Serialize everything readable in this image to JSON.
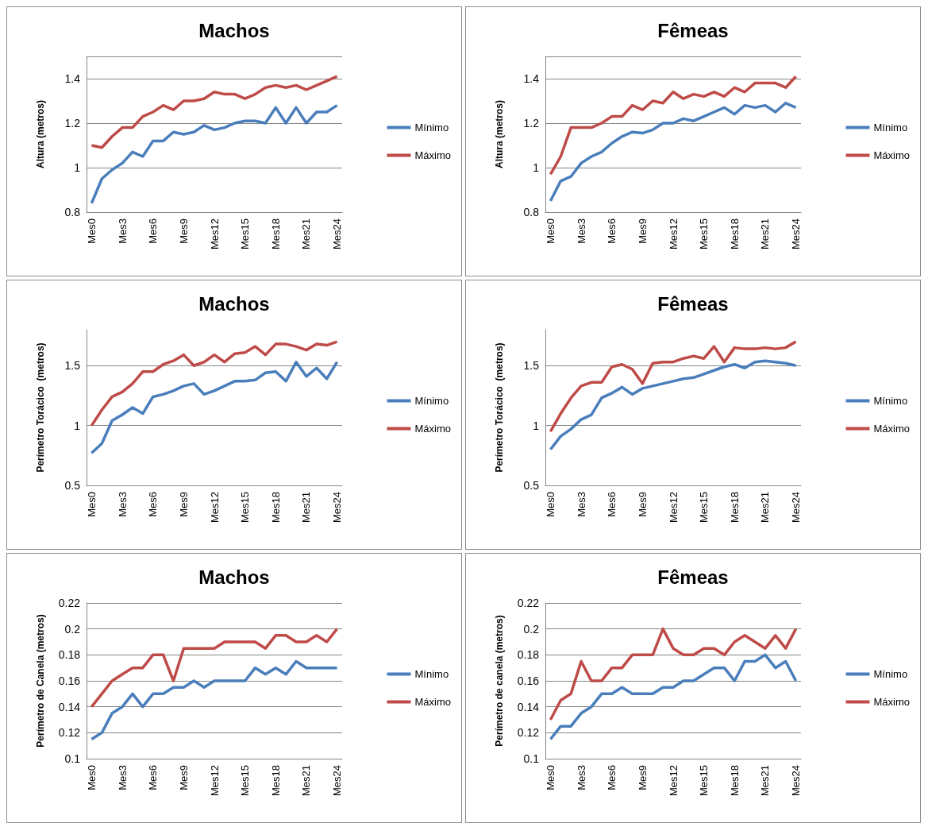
{
  "chart_data": [
    {
      "type": "line",
      "title": "Machos",
      "ylabel": "Altura (metros)",
      "categories": [
        "Mes0",
        null,
        null,
        "Mes3",
        null,
        null,
        "Mes6",
        null,
        null,
        "Mes9",
        null,
        null,
        "Mes12",
        null,
        null,
        "Mes15",
        null,
        null,
        "Mes18",
        null,
        null,
        "Mes21",
        null,
        null,
        "Mes24"
      ],
      "ylim": [
        0.8,
        1.5
      ],
      "yticks": [
        0.8,
        1,
        1.2,
        1.4,
        {
          "value": 1.5,
          "label": null
        }
      ],
      "grid": "y",
      "legend": "right",
      "marker": "none",
      "series": [
        {
          "name": "Mínimo",
          "color": "#4a7ebb",
          "values": [
            0.84,
            0.95,
            0.99,
            1.02,
            1.07,
            1.05,
            1.12,
            1.12,
            1.16,
            1.15,
            1.16,
            1.19,
            1.17,
            1.18,
            1.2,
            1.21,
            1.21,
            1.2,
            1.27,
            1.2,
            1.27,
            1.2,
            1.25,
            1.25,
            1.28
          ]
        },
        {
          "name": "Máximo",
          "color": "#be4b48",
          "values": [
            1.1,
            1.09,
            1.14,
            1.18,
            1.18,
            1.23,
            1.25,
            1.28,
            1.26,
            1.3,
            1.3,
            1.31,
            1.34,
            1.33,
            1.33,
            1.31,
            1.33,
            1.36,
            1.37,
            1.36,
            1.37,
            1.35,
            1.37,
            1.39,
            1.41
          ]
        }
      ]
    },
    {
      "type": "line",
      "title": "Fêmeas",
      "ylabel": "Altura (metros)",
      "categories": [
        "Mes0",
        null,
        null,
        "Mes3",
        null,
        null,
        "Mes6",
        null,
        null,
        "Mes9",
        null,
        null,
        "Mes12",
        null,
        null,
        "Mes15",
        null,
        null,
        "Mes18",
        null,
        null,
        "Mes21",
        null,
        null,
        "Mes24"
      ],
      "ylim": [
        0.8,
        1.5
      ],
      "yticks": [
        0.8,
        1,
        1.2,
        1.4,
        {
          "value": 1.5,
          "label": null
        }
      ],
      "grid": "y",
      "legend": "right",
      "marker": "none",
      "series": [
        {
          "name": "Mínimo",
          "color": "#4a7ebb",
          "values": [
            0.85,
            0.94,
            0.96,
            1.02,
            1.05,
            1.07,
            1.11,
            1.14,
            1.16,
            1.155,
            1.17,
            1.2,
            1.2,
            1.22,
            1.21,
            1.23,
            1.25,
            1.27,
            1.24,
            1.28,
            1.27,
            1.28,
            1.25,
            1.29,
            1.27
          ]
        },
        {
          "name": "Máximo",
          "color": "#be4b48",
          "values": [
            0.97,
            1.05,
            1.18,
            1.18,
            1.18,
            1.2,
            1.23,
            1.23,
            1.28,
            1.26,
            1.3,
            1.29,
            1.34,
            1.31,
            1.33,
            1.32,
            1.34,
            1.32,
            1.36,
            1.34,
            1.38,
            1.38,
            1.38,
            1.36,
            1.41
          ]
        }
      ]
    },
    {
      "type": "line",
      "title": "Machos",
      "ylabel": "Perímetro Torácico  (metros)",
      "categories": [
        "Mes0",
        null,
        null,
        "Mes3",
        null,
        null,
        "Mes6",
        null,
        null,
        "Mes9",
        null,
        null,
        "Mes12",
        null,
        null,
        "Mes15",
        null,
        null,
        "Mes18",
        null,
        null,
        "Mes21",
        null,
        null,
        "Mes24"
      ],
      "ylim": [
        0.5,
        1.8
      ],
      "yticks": [
        0.5,
        1,
        1.5
      ],
      "grid": "y",
      "legend": "right",
      "marker": "none",
      "series": [
        {
          "name": "Mínimo",
          "color": "#4a7ebb",
          "values": [
            0.77,
            0.85,
            1.04,
            1.09,
            1.15,
            1.1,
            1.24,
            1.26,
            1.29,
            1.33,
            1.35,
            1.26,
            1.29,
            1.33,
            1.37,
            1.37,
            1.38,
            1.44,
            1.45,
            1.37,
            1.53,
            1.41,
            1.48,
            1.39,
            1.53
          ]
        },
        {
          "name": "Máximo",
          "color": "#be4b48",
          "values": [
            1.0,
            1.13,
            1.24,
            1.28,
            1.35,
            1.45,
            1.45,
            1.51,
            1.54,
            1.59,
            1.5,
            1.53,
            1.59,
            1.53,
            1.6,
            1.61,
            1.66,
            1.59,
            1.68,
            1.68,
            1.66,
            1.63,
            1.68,
            1.67,
            1.7
          ]
        }
      ]
    },
    {
      "type": "line",
      "title": "Fêmeas",
      "ylabel": "Perímetro Torácico  (metros)",
      "categories": [
        "Mes0",
        null,
        null,
        "Mes3",
        null,
        null,
        "Mes6",
        null,
        null,
        "Mes9",
        null,
        null,
        "Mes12",
        null,
        null,
        "Mes15",
        null,
        null,
        "Mes18",
        null,
        null,
        "Mes21",
        null,
        null,
        "Mes24"
      ],
      "ylim": [
        0.5,
        1.8
      ],
      "yticks": [
        0.5,
        1,
        1.5
      ],
      "grid": "y",
      "legend": "right",
      "marker": "none",
      "series": [
        {
          "name": "Mínimo",
          "color": "#4a7ebb",
          "values": [
            0.8,
            0.91,
            0.97,
            1.05,
            1.09,
            1.23,
            1.27,
            1.32,
            1.26,
            1.31,
            1.33,
            1.35,
            1.37,
            1.39,
            1.4,
            1.43,
            1.46,
            1.49,
            1.51,
            1.48,
            1.53,
            1.54,
            1.53,
            1.52,
            1.5
          ]
        },
        {
          "name": "Máximo",
          "color": "#be4b48",
          "values": [
            0.95,
            1.1,
            1.23,
            1.33,
            1.36,
            1.36,
            1.49,
            1.51,
            1.47,
            1.35,
            1.52,
            1.53,
            1.53,
            1.56,
            1.58,
            1.56,
            1.66,
            1.53,
            1.65,
            1.64,
            1.64,
            1.65,
            1.64,
            1.65,
            1.7
          ]
        }
      ]
    },
    {
      "type": "line",
      "title": "Machos",
      "ylabel": "Perímetro de Canela (metros)",
      "categories": [
        "Mes0",
        null,
        null,
        "Mes3",
        null,
        null,
        "Mes6",
        null,
        null,
        "Mes9",
        null,
        null,
        "Mes12",
        null,
        null,
        "Mes15",
        null,
        null,
        "Mes18",
        null,
        null,
        "Mes21",
        null,
        null,
        "Mes24"
      ],
      "ylim": [
        0.1,
        0.22
      ],
      "yticks": [
        0.1,
        0.12,
        0.14,
        0.16,
        0.18,
        0.2,
        0.22
      ],
      "grid": "y",
      "legend": "right",
      "marker": "none",
      "series": [
        {
          "name": "Mínimo",
          "color": "#4a7ebb",
          "values": [
            0.115,
            0.12,
            0.135,
            0.14,
            0.15,
            0.14,
            0.15,
            0.15,
            0.155,
            0.155,
            0.16,
            0.155,
            0.16,
            0.16,
            0.16,
            0.16,
            0.17,
            0.165,
            0.17,
            0.165,
            0.175,
            0.17,
            0.17,
            0.17,
            0.17
          ]
        },
        {
          "name": "Máximo",
          "color": "#be4b48",
          "values": [
            0.14,
            0.15,
            0.16,
            0.165,
            0.17,
            0.17,
            0.18,
            0.18,
            0.16,
            0.185,
            0.185,
            0.185,
            0.185,
            0.19,
            0.19,
            0.19,
            0.19,
            0.185,
            0.195,
            0.195,
            0.19,
            0.19,
            0.195,
            0.19,
            0.2
          ]
        }
      ]
    },
    {
      "type": "line",
      "title": "Fêmeas",
      "ylabel": "Perímetro de canela (metros)",
      "categories": [
        "Mes0",
        null,
        null,
        "Mes3",
        null,
        null,
        "Mes6",
        null,
        null,
        "Mes9",
        null,
        null,
        "Mes12",
        null,
        null,
        "Mes15",
        null,
        null,
        "Mes18",
        null,
        null,
        "Mes21",
        null,
        null,
        "Mes24"
      ],
      "ylim": [
        0.1,
        0.22
      ],
      "yticks": [
        0.1,
        0.12,
        0.14,
        0.16,
        0.18,
        0.2,
        0.22
      ],
      "grid": "y",
      "legend": "right",
      "marker": "none",
      "series": [
        {
          "name": "Mínimo",
          "color": "#4a7ebb",
          "values": [
            0.115,
            0.125,
            0.125,
            0.135,
            0.14,
            0.15,
            0.15,
            0.155,
            0.15,
            0.15,
            0.15,
            0.155,
            0.155,
            0.16,
            0.16,
            0.165,
            0.17,
            0.17,
            0.16,
            0.175,
            0.175,
            0.18,
            0.17,
            0.175,
            0.16
          ]
        },
        {
          "name": "Máximo",
          "color": "#be4b48",
          "values": [
            0.13,
            0.145,
            0.15,
            0.175,
            0.16,
            0.16,
            0.17,
            0.17,
            0.18,
            0.18,
            0.18,
            0.2,
            0.185,
            0.18,
            0.18,
            0.185,
            0.185,
            0.18,
            0.19,
            0.195,
            0.19,
            0.185,
            0.195,
            0.185,
            0.2
          ]
        }
      ]
    }
  ]
}
